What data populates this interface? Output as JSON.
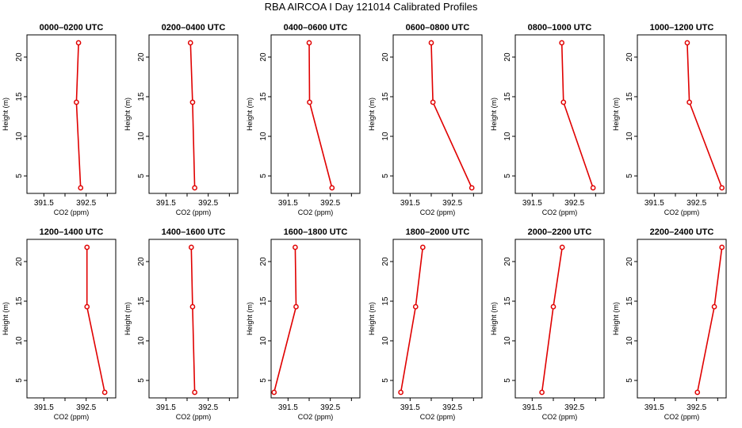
{
  "figure": {
    "title": "RBA AIRCOA I  Day 121014  Calibrated Profiles"
  },
  "chart_data": {
    "type": "line",
    "xlabel": "CO2 (ppm)",
    "ylabel": "Height (m)",
    "xlim": [
      391.1,
      393.2
    ],
    "ylim": [
      2.8,
      22.8
    ],
    "xticks": [
      391.5,
      392.5
    ],
    "xticks_unlabeled": [
      392.0,
      393.0
    ],
    "yticks": [
      5,
      10,
      15,
      20
    ],
    "heights": [
      3.5,
      14.3,
      21.8
    ],
    "panels": [
      {
        "title": "0000–0200 UTC",
        "co2": [
          392.37,
          392.27,
          392.32
        ]
      },
      {
        "title": "0200–0400 UTC",
        "co2": [
          392.18,
          392.13,
          392.08
        ]
      },
      {
        "title": "0400–0600 UTC",
        "co2": [
          392.54,
          392.01,
          392.0
        ]
      },
      {
        "title": "0600–0800 UTC",
        "co2": [
          392.96,
          392.04,
          392.0
        ]
      },
      {
        "title": "0800–1000 UTC",
        "co2": [
          392.94,
          392.24,
          392.2
        ]
      },
      {
        "title": "1000–1200 UTC",
        "co2": [
          393.1,
          392.33,
          392.28
        ]
      },
      {
        "title": "1200–1400 UTC",
        "co2": [
          392.94,
          392.52,
          392.52
        ]
      },
      {
        "title": "1400–1600 UTC",
        "co2": [
          392.18,
          392.13,
          392.1
        ]
      },
      {
        "title": "1600–1800 UTC",
        "co2": [
          391.17,
          391.69,
          391.67
        ]
      },
      {
        "title": "1800–2000 UTC",
        "co2": [
          391.28,
          391.63,
          391.8
        ]
      },
      {
        "title": "2000–2200 UTC",
        "co2": [
          391.73,
          392.0,
          392.21
        ]
      },
      {
        "title": "2200–2400 UTC",
        "co2": [
          392.52,
          392.92,
          393.1
        ]
      }
    ]
  }
}
